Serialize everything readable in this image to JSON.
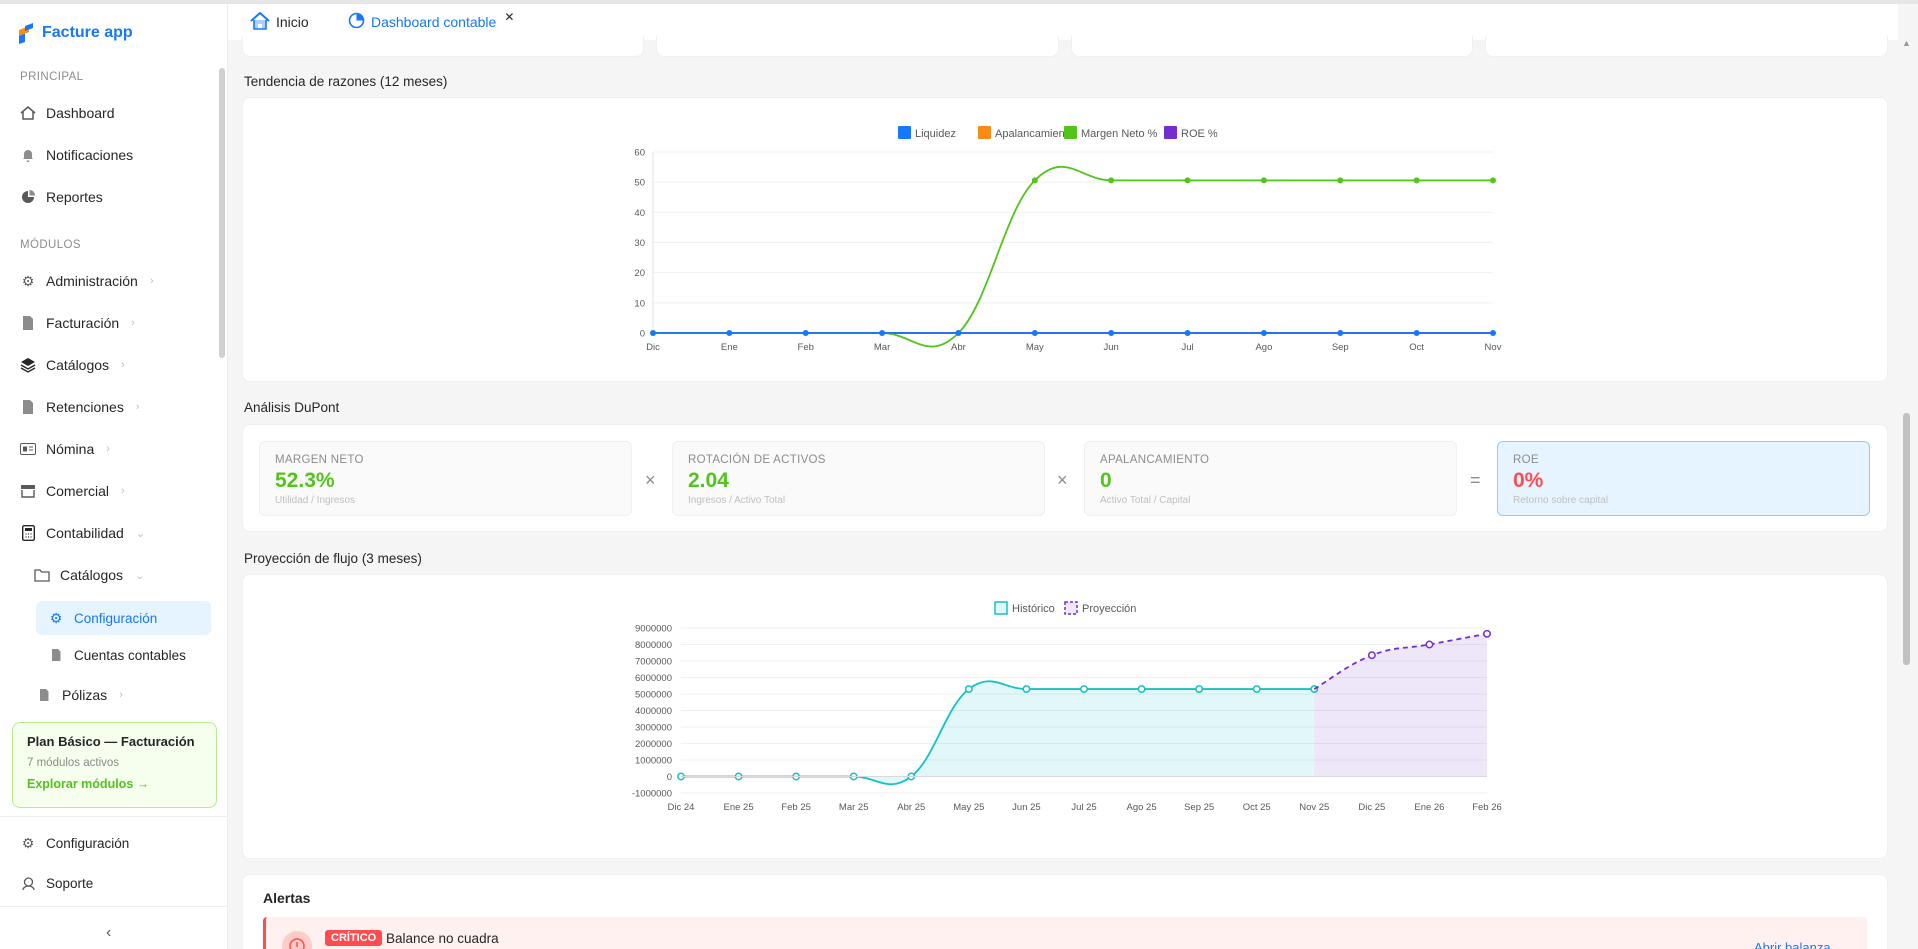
{
  "app": {
    "name": "Facture app"
  },
  "sidebar": {
    "principal_title": "PRINCIPAL",
    "principal": [
      {
        "label": "Dashboard",
        "icon": "home-icon"
      },
      {
        "label": "Notificaciones",
        "icon": "bell-icon"
      },
      {
        "label": "Reportes",
        "icon": "pie-icon"
      }
    ],
    "modulos_title": "MÓDULOS",
    "modulos": [
      {
        "label": "Administración",
        "icon": "gears-icon"
      },
      {
        "label": "Facturación",
        "icon": "file-icon"
      },
      {
        "label": "Catálogos",
        "icon": "layers-icon"
      },
      {
        "label": "Retenciones",
        "icon": "file-icon"
      },
      {
        "label": "Nómina",
        "icon": "idcard-icon"
      },
      {
        "label": "Comercial",
        "icon": "shop-icon"
      },
      {
        "label": "Contabilidad",
        "icon": "calculator-icon"
      }
    ],
    "sub": {
      "catalogos": "Catálogos",
      "configuracion": "Configuración",
      "cuentas": "Cuentas contables",
      "polizas": "Pólizas"
    },
    "plan": {
      "title": "Plan Básico — Facturación",
      "sub": "7 módulos activos",
      "link": "Explorar módulos →"
    },
    "footer": [
      {
        "label": "Configuración",
        "icon": "gears-icon"
      },
      {
        "label": "Soporte",
        "icon": "support-icon"
      }
    ]
  },
  "tabs": [
    {
      "label": "Inicio"
    },
    {
      "label": "Dashboard contable"
    }
  ],
  "sections": {
    "tendencia": "Tendencia de razones (12 meses)",
    "dupont": "Análisis DuPont",
    "proyeccion": "Proyección de flujo (3 meses)",
    "alertas": "Alertas"
  },
  "dupont": [
    {
      "label": "MARGEN NETO",
      "value": "52.3%",
      "sub": "Utilidad / Ingresos",
      "color": "#52c41a"
    },
    {
      "label": "ROTACIÓN DE ACTIVOS",
      "value": "2.04",
      "sub": "Ingresos / Activo Total",
      "color": "#52c41a"
    },
    {
      "label": "APALANCAMIENTO",
      "value": "0",
      "sub": "Activo Total / Capital",
      "color": "#52c41a"
    },
    {
      "label": "ROE",
      "value": "0%",
      "sub": "Retorno sobre capital",
      "color": "#ff4d4f"
    }
  ],
  "operators": [
    "×",
    "×",
    "="
  ],
  "alert": {
    "badge": "CRÍTICO",
    "title": "Balance no cuadra",
    "link": "Abrir balanza"
  },
  "chart_data": [
    {
      "type": "line",
      "categories": [
        "Dic",
        "Ene",
        "Feb",
        "Mar",
        "Abr",
        "May",
        "Jun",
        "Jul",
        "Ago",
        "Sep",
        "Oct",
        "Nov"
      ],
      "ylim": [
        0,
        60
      ],
      "yticks": [
        0,
        10,
        20,
        30,
        40,
        50,
        60
      ],
      "legend": "top-center",
      "series": [
        {
          "name": "Liquidez",
          "color": "#1677ff",
          "values": [
            0,
            0,
            0,
            0,
            0,
            0,
            0,
            0,
            0,
            0,
            0,
            0
          ]
        },
        {
          "name": "Apalancamiento",
          "color": "#fa8c16",
          "values": [
            0,
            0,
            0,
            0,
            0,
            0,
            0,
            0,
            0,
            0,
            0,
            0
          ]
        },
        {
          "name": "Margen Neto %",
          "color": "#52c41a",
          "values": [
            0,
            0,
            0,
            0,
            0,
            50.6,
            50.6,
            50.6,
            50.6,
            50.6,
            50.6,
            50.6
          ]
        },
        {
          "name": "ROE %",
          "color": "#722ed1",
          "values": [
            0,
            0,
            0,
            0,
            0,
            0,
            0,
            0,
            0,
            0,
            0,
            0
          ]
        }
      ]
    },
    {
      "type": "area",
      "categories": [
        "Dic 24",
        "Ene 25",
        "Feb 25",
        "Mar 25",
        "Abr 25",
        "May 25",
        "Jun 25",
        "Jul 25",
        "Ago 25",
        "Sep 25",
        "Oct 25",
        "Nov 25",
        "Dic 25",
        "Ene 26",
        "Feb 26"
      ],
      "ylim": [
        -1000000,
        9000000
      ],
      "yticks": [
        -1000000,
        0,
        1000000,
        2000000,
        3000000,
        4000000,
        5000000,
        6000000,
        7000000,
        8000000,
        9000000
      ],
      "legend": "top-center",
      "series": [
        {
          "name": "Histórico",
          "color": "#13c2c2",
          "values": [
            0,
            0,
            0,
            0,
            0,
            5300000,
            5300000,
            5300000,
            5300000,
            5300000,
            5300000,
            5300000,
            null,
            null,
            null
          ]
        },
        {
          "name": "Proyección",
          "color": "#722ed1",
          "dashed": true,
          "values": [
            null,
            null,
            null,
            null,
            null,
            null,
            null,
            null,
            null,
            null,
            null,
            5300000,
            7350000,
            8000000,
            8650000
          ]
        }
      ]
    }
  ]
}
